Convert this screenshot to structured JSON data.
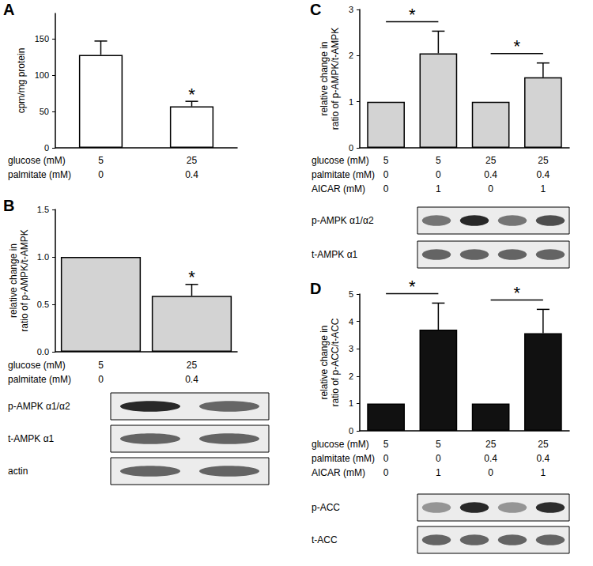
{
  "chart_data": [
    {
      "type": "bar",
      "panel": "A",
      "ylabel": "cpm/mg protein",
      "categories": [
        null,
        null
      ],
      "values": [
        128,
        57
      ],
      "errors": [
        19,
        7
      ],
      "color": "#ffffff",
      "ylim": [
        0,
        185
      ],
      "yticks": [
        0,
        50,
        100,
        150
      ],
      "conditions": [
        {
          "label": "glucose (mM)",
          "values": [
            5,
            25
          ]
        },
        {
          "label": "palmitate (mM)",
          "values": [
            0,
            0.4
          ]
        }
      ],
      "annotations": [
        {
          "category": 1,
          "text": "*"
        }
      ]
    },
    {
      "type": "bar",
      "panel": "B",
      "ylabel": "relative change in\nratio of p-AMPK/t-AMPK",
      "categories": [
        null,
        null
      ],
      "values": [
        1,
        0.59
      ],
      "errors": [
        null,
        0.12
      ],
      "color": "#d3d3d3",
      "ylim": [
        0,
        1.5
      ],
      "yticks": [
        {
          "value": 0,
          "label": "0.0"
        },
        {
          "value": 0.5,
          "label": "0.5"
        },
        {
          "value": 1,
          "label": "1.0"
        },
        {
          "value": 1.5,
          "label": "1.5"
        }
      ],
      "conditions": [
        {
          "label": "glucose (mM)",
          "values": [
            5,
            25
          ]
        },
        {
          "label": "palmitate (mM)",
          "values": [
            0,
            0.4
          ]
        }
      ],
      "annotations": [
        {
          "category": 1,
          "text": "*"
        }
      ],
      "blots": [
        {
          "label": "p-AMPK α1/α2"
        },
        {
          "label": "t-AMPK α1"
        },
        {
          "label": "actin"
        }
      ]
    },
    {
      "type": "bar",
      "panel": "C",
      "ylabel": "relative change in\nratio of p-AMPK/t-AMPK",
      "categories": [
        null,
        null,
        null,
        null
      ],
      "values": [
        1,
        2.05,
        1,
        1.53
      ],
      "errors": [
        null,
        0.48,
        null,
        0.31
      ],
      "color": "#d3d3d3",
      "ylim": [
        0,
        3
      ],
      "yticks": [
        0,
        1,
        2,
        3
      ],
      "conditions": [
        {
          "label": "glucose (mM)",
          "values": [
            5,
            5,
            25,
            25
          ]
        },
        {
          "label": "palmitate (mM)",
          "values": [
            0,
            0,
            0.4,
            0.4
          ]
        },
        {
          "label": "AICAR (mM)",
          "values": [
            0,
            1,
            0,
            1
          ]
        }
      ],
      "brackets": [
        {
          "from": 0,
          "to": 1,
          "text": "*"
        },
        {
          "from": 2,
          "to": 3,
          "text": "*"
        }
      ],
      "blots": [
        {
          "label": "p-AMPK α1/α2"
        },
        {
          "label": "t-AMPK α1"
        }
      ]
    },
    {
      "type": "bar",
      "panel": "D",
      "ylabel": "relative change in\nratio of p-ACC/t-ACC",
      "categories": [
        null,
        null,
        null,
        null
      ],
      "values": [
        1,
        3.7,
        1,
        3.57
      ],
      "errors": [
        null,
        0.97,
        null,
        0.87
      ],
      "color": "#111111",
      "ylim": [
        0,
        5
      ],
      "yticks": [
        0,
        1,
        2,
        3,
        4,
        5
      ],
      "conditions": [
        {
          "label": "glucose (mM)",
          "values": [
            5,
            5,
            25,
            25
          ]
        },
        {
          "label": "palmitate (mM)",
          "values": [
            0,
            0,
            0.4,
            0.4
          ]
        },
        {
          "label": "AICAR (mM)",
          "values": [
            0,
            1,
            0,
            1
          ]
        }
      ],
      "brackets": [
        {
          "from": 0,
          "to": 1,
          "text": "*"
        },
        {
          "from": 2,
          "to": 3,
          "text": "*"
        }
      ],
      "blots": [
        {
          "label": "p-ACC"
        },
        {
          "label": "t-ACC"
        }
      ]
    }
  ]
}
